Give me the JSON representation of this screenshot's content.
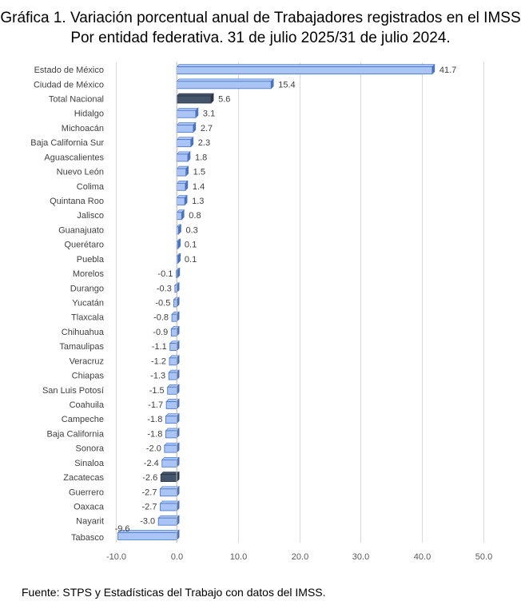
{
  "chart_data": {
    "type": "bar",
    "orientation": "horizontal",
    "title": "Gráfica 1. Variación porcentual anual de Trabajadores registrados en el IMSS",
    "subtitle": "Por entidad federativa. 31 de julio 2025/31 de julio 2024.",
    "source": "Fuente: STPS y Estadísticas del Trabajo con datos del IMSS.",
    "categories": [
      "Estado de México",
      "Ciudad de México",
      "Total Nacional",
      "Hidalgo",
      "Michoacán",
      "Baja California Sur",
      "Aguascalientes",
      "Nuevo León",
      "Colima",
      "Quintana Roo",
      "Jalisco",
      "Guanajuato",
      "Querétaro",
      "Puebla",
      "Morelos",
      "Durango",
      "Yucatán",
      "Tlaxcala",
      "Chihuahua",
      "Tamaulipas",
      "Veracruz",
      "Chiapas",
      "San Luis Potosí",
      "Coahuila",
      "Campeche",
      "Baja California",
      "Sonora",
      "Sinaloa",
      "Zacatecas",
      "Guerrero",
      "Oaxaca",
      "Nayarit",
      "Tabasco"
    ],
    "values": [
      41.7,
      15.4,
      5.6,
      3.1,
      2.7,
      2.3,
      1.8,
      1.5,
      1.4,
      1.3,
      0.8,
      0.3,
      0.1,
      0.1,
      -0.1,
      -0.3,
      -0.5,
      -0.8,
      -0.9,
      -1.1,
      -1.2,
      -1.3,
      -1.5,
      -1.7,
      -1.8,
      -1.8,
      -2.0,
      -2.4,
      -2.6,
      -2.7,
      -2.7,
      -3.0,
      -9.6
    ],
    "value_labels": [
      "41.7",
      "15.4",
      "5.6",
      "3.1",
      "2.7",
      "2.3",
      "1.8",
      "1.5",
      "1.4",
      "1.3",
      "0.8",
      "0.3",
      "0.1",
      "0.1",
      "-0.1",
      "-0.3",
      "-0.5",
      "-0.8",
      "-0.9",
      "-1.1",
      "-1.2",
      "-1.3",
      "-1.5",
      "-1.7",
      "-1.8",
      "-1.8",
      "-2.0",
      "-2.4",
      "-2.6",
      "-2.7",
      "-2.7",
      "-3.0",
      "-9.6"
    ],
    "highlight": [
      "Total Nacional",
      "Zacatecas"
    ],
    "xlim": [
      -10,
      50
    ],
    "xticks": [
      -10,
      0,
      10,
      20,
      30,
      40,
      50
    ],
    "xtick_labels": [
      "-10.0",
      "0.0",
      "10.0",
      "20.0",
      "30.0",
      "40.0",
      "50.0"
    ],
    "grid": true,
    "colors": {
      "bar": "#a9c4f5",
      "bar_edge": "#4472c4",
      "bar_side": "#4f72b8",
      "highlight": "#44546a",
      "highlight_side": "#2b3646",
      "grid": "#d9d9d9"
    }
  }
}
